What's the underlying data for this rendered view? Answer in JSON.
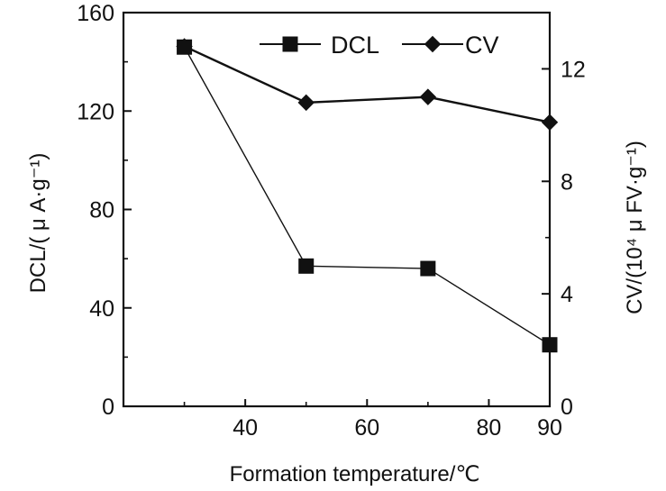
{
  "chart_data": {
    "type": "line",
    "title": "",
    "xlabel": "Formation temperature/℃",
    "ylabel": "DCL/( μ A·g⁻¹)",
    "y2label": "CV/(10⁴ μ FV·g⁻¹)",
    "xlim": [
      20,
      90
    ],
    "ylim": [
      0,
      160
    ],
    "y2lim": [
      0,
      14
    ],
    "x_ticks": [
      "40",
      "60",
      "80",
      "90"
    ],
    "x_tick_values": [
      40,
      60,
      80,
      90
    ],
    "y_ticks": [
      "0",
      "40",
      "80",
      "120",
      "160"
    ],
    "y_tick_values": [
      0,
      40,
      80,
      120,
      160
    ],
    "y2_ticks": [
      "0",
      "4",
      "8",
      "12"
    ],
    "y2_tick_values": [
      0,
      4,
      8,
      12
    ],
    "x": [
      30,
      50,
      70,
      90
    ],
    "series": [
      {
        "name": "DCL",
        "axis": "left",
        "marker": "square",
        "values": [
          146,
          57,
          56,
          25
        ]
      },
      {
        "name": "CV",
        "axis": "right",
        "marker": "diamond",
        "values": [
          12.8,
          10.8,
          11.0,
          10.1
        ]
      }
    ],
    "legend_position": "top-right",
    "grid": false
  }
}
